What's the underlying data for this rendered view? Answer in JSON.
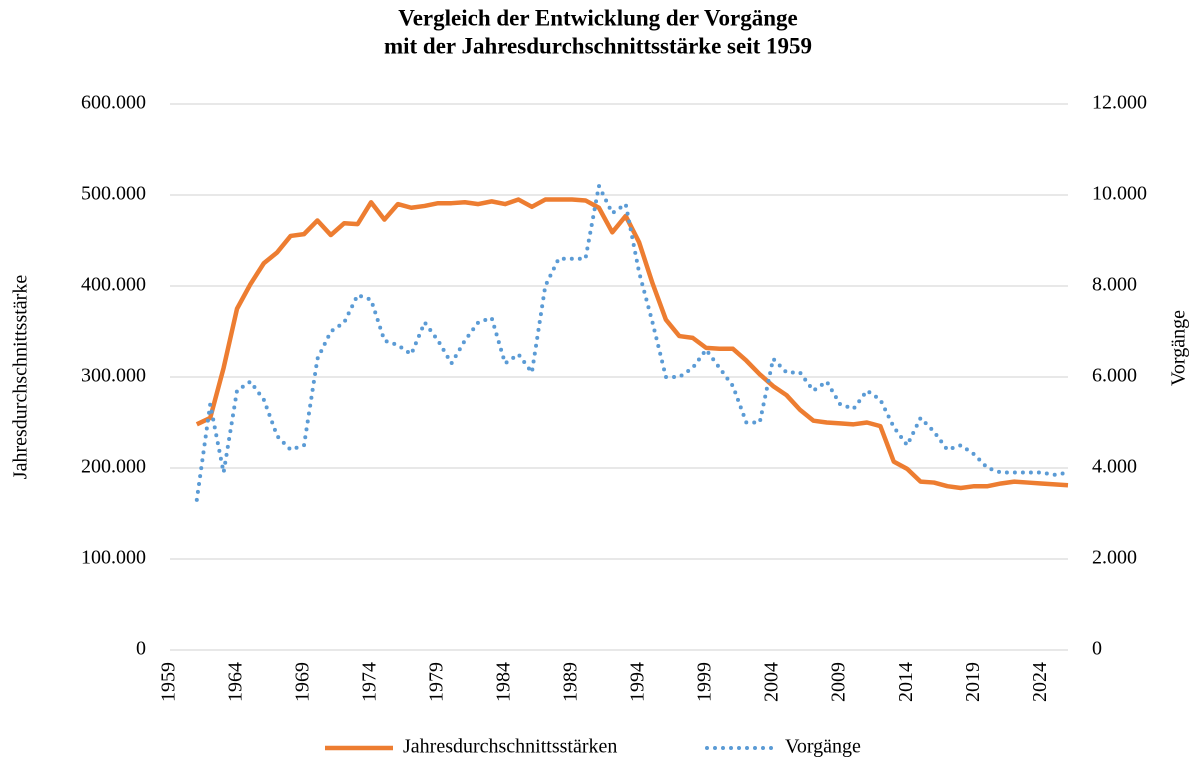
{
  "chart_data": {
    "type": "line",
    "title": [
      "Vergleich der Entwicklung der Vorgänge",
      "mit der Jahresdurchschnittsstärke seit 1959"
    ],
    "ylabel": "Jahresdurchschnittsstärke",
    "y2label": "Vorgänge",
    "x": [
      1961,
      1962,
      1963,
      1964,
      1965,
      1966,
      1967,
      1968,
      1969,
      1970,
      1971,
      1972,
      1973,
      1974,
      1975,
      1976,
      1977,
      1978,
      1979,
      1980,
      1981,
      1982,
      1983,
      1984,
      1985,
      1986,
      1987,
      1988,
      1989,
      1990,
      1991,
      1992,
      1993,
      1994,
      1995,
      1996,
      1997,
      1998,
      1999,
      2000,
      2001,
      2002,
      2003,
      2004,
      2005,
      2006,
      2007,
      2008,
      2009,
      2010,
      2011,
      2012,
      2013,
      2014,
      2015,
      2016,
      2017,
      2018,
      2019,
      2020,
      2021,
      2022,
      2023,
      2024,
      2025,
      2026
    ],
    "series": [
      {
        "name": "Jahresdurchschnittsstärken",
        "color": "#ed7d31",
        "style": "solid",
        "values": [
          248000,
          255000,
          310000,
          375000,
          402000,
          425000,
          437000,
          455000,
          457000,
          472000,
          456000,
          469000,
          468000,
          492000,
          473000,
          490000,
          486000,
          488000,
          491000,
          491000,
          492000,
          490000,
          493000,
          490000,
          495000,
          487000,
          495000,
          495000,
          495000,
          494000,
          486000,
          459000,
          477000,
          448000,
          403000,
          363000,
          345000,
          343000,
          332000,
          331000,
          331000,
          318000,
          303000,
          290000,
          280000,
          264000,
          252000,
          250000,
          249000,
          248000,
          250000,
          246000,
          207000,
          199000,
          185000,
          184000,
          180000,
          178000,
          180000,
          180000,
          183000,
          185000,
          184000,
          183000,
          182000,
          181000
        ]
      },
      {
        "name": "Vorgänge",
        "color": "#5b9bd5",
        "style": "dotted",
        "axis": "y2",
        "values": [
          3300,
          5400,
          3900,
          5700,
          5900,
          5500,
          4700,
          4400,
          4500,
          6400,
          7000,
          7200,
          7800,
          7700,
          6800,
          6700,
          6500,
          7200,
          6800,
          6300,
          6800,
          7200,
          7300,
          6300,
          6500,
          6100,
          8000,
          8600,
          8600,
          8600,
          10200,
          9600,
          9800,
          8300,
          7200,
          6000,
          6000,
          6200,
          6600,
          6200,
          5800,
          5000,
          5000,
          6400,
          6100,
          6100,
          5700,
          5900,
          5400,
          5300,
          5700,
          5500,
          4900,
          4500,
          5100,
          4800,
          4400,
          4500,
          4300,
          4000,
          3900,
          3900,
          3900,
          3900,
          3850,
          3900
        ]
      }
    ],
    "xlim": [
      1959,
      2026
    ],
    "xticks": [
      1959,
      1964,
      1969,
      1974,
      1979,
      1984,
      1989,
      1994,
      1999,
      2004,
      2009,
      2014,
      2019,
      2024
    ],
    "ylim": [
      0,
      600000
    ],
    "yticks": [
      0,
      {
        "value": 100000,
        "label": "100.000"
      },
      {
        "value": 200000,
        "label": "200.000"
      },
      {
        "value": 300000,
        "label": "300.000"
      },
      {
        "value": 400000,
        "label": "400.000"
      },
      {
        "value": 500000,
        "label": "500.000"
      },
      {
        "value": 600000,
        "label": "600.000"
      }
    ],
    "y2lim": [
      0,
      12000
    ],
    "y2ticks": [
      0,
      {
        "value": 2000,
        "label": "2.000"
      },
      {
        "value": 4000,
        "label": "4.000"
      },
      {
        "value": 6000,
        "label": "6.000"
      },
      {
        "value": 8000,
        "label": "8.000"
      },
      {
        "value": 10000,
        "label": "10.000"
      },
      {
        "value": 12000,
        "label": "12.000"
      }
    ],
    "grid": true,
    "legend": "bottom"
  }
}
